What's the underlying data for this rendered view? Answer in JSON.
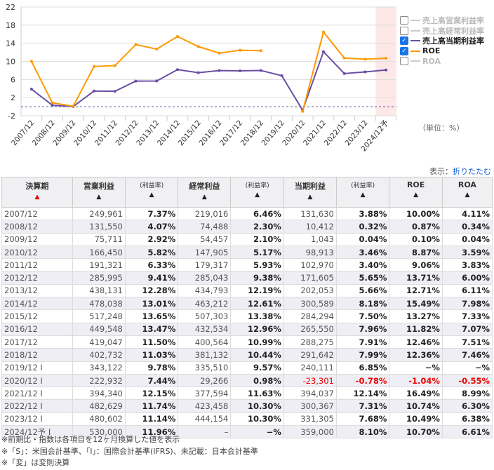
{
  "chart_data": {
    "type": "line",
    "categories": [
      "2007/12",
      "2008/12",
      "2009/12",
      "2010/12",
      "2011/12",
      "2012/12",
      "2013/12",
      "2014/12",
      "2015/12",
      "2016/12",
      "2017/12",
      "2018/12",
      "2019/12",
      "2020/12",
      "2021/12",
      "2022/12",
      "2023/12",
      "2024/12予"
    ],
    "yticks": [
      "22",
      "18",
      "14",
      "10",
      "6",
      "2",
      "-2"
    ],
    "ylim": [
      -2,
      22
    ],
    "series": [
      {
        "name": "売上高当期利益率",
        "color": "#6a4fa3",
        "values": [
          3.88,
          0.32,
          0.04,
          3.46,
          3.4,
          5.65,
          5.66,
          8.18,
          7.5,
          7.96,
          7.91,
          7.99,
          6.85,
          -0.78,
          12.14,
          7.31,
          7.68,
          8.1
        ]
      },
      {
        "name": "ROE",
        "color": "#ff9900",
        "values": [
          10.0,
          0.87,
          0.1,
          8.87,
          9.06,
          13.71,
          12.71,
          15.49,
          13.27,
          11.82,
          12.46,
          12.36,
          null,
          -1.04,
          16.49,
          10.74,
          10.49,
          10.7
        ]
      }
    ]
  },
  "legend": [
    {
      "label": "売上高営業利益率",
      "checked": false,
      "color": "#cccccc"
    },
    {
      "label": "売上高経常利益率",
      "checked": false,
      "color": "#cccccc"
    },
    {
      "label": "売上高当期利益率",
      "checked": true,
      "color": "#6a4fa3"
    },
    {
      "label": "ROE",
      "checked": true,
      "color": "#ff9900"
    },
    {
      "label": "ROA",
      "checked": false,
      "color": "#cccccc"
    }
  ],
  "unit": "（単位：%）",
  "display_label": "表示：",
  "collapse_link": "折りたたむ",
  "headers": [
    "決算期",
    "営業利益",
    "(利益率)",
    "経常利益",
    "(利益率)",
    "当期利益",
    "(利益率)",
    "ROE",
    "ROA"
  ],
  "sort_asc": "▲",
  "rows": [
    [
      "2007/12",
      "249,961",
      "7.37%",
      "219,016",
      "6.46%",
      "131,630",
      "3.88%",
      "10.00%",
      "4.11%"
    ],
    [
      "2008/12",
      "131,550",
      "4.07%",
      "74,488",
      "2.30%",
      "10,412",
      "0.32%",
      "0.87%",
      "0.34%"
    ],
    [
      "2009/12",
      "75,711",
      "2.92%",
      "54,457",
      "2.10%",
      "1,043",
      "0.04%",
      "0.10%",
      "0.04%"
    ],
    [
      "2010/12",
      "166,450",
      "5.82%",
      "147,905",
      "5.17%",
      "98,913",
      "3.46%",
      "8.87%",
      "3.59%"
    ],
    [
      "2011/12",
      "191,321",
      "6.33%",
      "179,317",
      "5.93%",
      "102,970",
      "3.40%",
      "9.06%",
      "3.83%"
    ],
    [
      "2012/12",
      "285,995",
      "9.41%",
      "285,043",
      "9.38%",
      "171,605",
      "5.65%",
      "13.71%",
      "6.00%"
    ],
    [
      "2013/12",
      "438,131",
      "12.28%",
      "434,793",
      "12.19%",
      "202,053",
      "5.66%",
      "12.71%",
      "6.11%"
    ],
    [
      "2014/12",
      "478,038",
      "13.01%",
      "463,212",
      "12.61%",
      "300,589",
      "8.18%",
      "15.49%",
      "7.98%"
    ],
    [
      "2015/12",
      "517,248",
      "13.65%",
      "507,303",
      "13.38%",
      "284,294",
      "7.50%",
      "13.27%",
      "7.33%"
    ],
    [
      "2016/12",
      "449,548",
      "13.47%",
      "432,534",
      "12.96%",
      "265,550",
      "7.96%",
      "11.82%",
      "7.07%"
    ],
    [
      "2017/12",
      "419,047",
      "11.50%",
      "400,564",
      "10.99%",
      "288,275",
      "7.91%",
      "12.46%",
      "7.51%"
    ],
    [
      "2018/12",
      "402,732",
      "11.03%",
      "381,132",
      "10.44%",
      "291,642",
      "7.99%",
      "12.36%",
      "7.46%"
    ],
    [
      "2019/12 I",
      "343,122",
      "9.78%",
      "335,510",
      "9.57%",
      "240,111",
      "6.85%",
      "−%",
      "−%"
    ],
    [
      "2020/12 I",
      "222,932",
      "7.44%",
      "29,266",
      "0.98%",
      "-23,301",
      "-0.78%",
      "-1.04%",
      "-0.55%"
    ],
    [
      "2021/12 I",
      "394,340",
      "12.15%",
      "377,594",
      "11.63%",
      "394,037",
      "12.14%",
      "16.49%",
      "8.99%"
    ],
    [
      "2022/12 I",
      "482,629",
      "11.74%",
      "423,458",
      "10.30%",
      "300,367",
      "7.31%",
      "10.74%",
      "6.30%"
    ],
    [
      "2023/12 I",
      "480,602",
      "11.14%",
      "444,154",
      "10.30%",
      "331,305",
      "7.68%",
      "10.49%",
      "6.38%"
    ],
    [
      "2024/12予 I",
      "530,000",
      "11.96%",
      "–",
      "−%",
      "359,000",
      "8.10%",
      "10.70%",
      "6.61%"
    ]
  ],
  "notes": [
    "※前期比・指数は各項目を12ヶ月換算した値を表示",
    "※「S」：米国会計基準、「I」：国際会計基準(IFRS)、未記載：日本会計基準",
    "※「変」は変則決算"
  ]
}
